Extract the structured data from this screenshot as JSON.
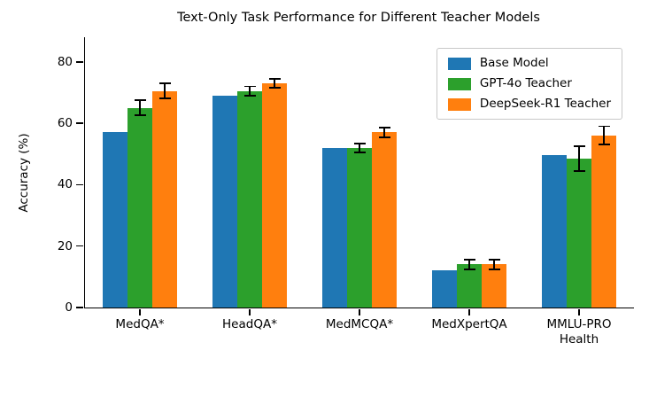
{
  "chart_data": {
    "type": "bar",
    "title": "Text-Only Task Performance for Different Teacher Models",
    "xlabel": "",
    "ylabel": "Accuracy (%)",
    "ylim": [
      0,
      88
    ],
    "yticks": [
      0,
      20,
      40,
      60,
      80
    ],
    "grid": false,
    "legend_position": "upper right",
    "categories": [
      "MedQA*",
      "HeadQA*",
      "MedMCQA*",
      "MedXpertQA",
      "MMLU-PRO\nHealth"
    ],
    "series": [
      {
        "name": "Base Model",
        "color": "#1f77b4",
        "values": [
          57,
          69,
          52,
          12,
          49.5
        ],
        "errors": [
          null,
          null,
          null,
          null,
          null
        ]
      },
      {
        "name": "GPT-4o Teacher",
        "color": "#2ca02c",
        "values": [
          65,
          70.5,
          52,
          14,
          48.5
        ],
        "errors": [
          2.5,
          1.5,
          1.5,
          1.5,
          4
        ]
      },
      {
        "name": "DeepSeek-R1 Teacher",
        "color": "#ff7f0e",
        "values": [
          70.5,
          73,
          57,
          14,
          56
        ],
        "errors": [
          2.5,
          1.5,
          1.5,
          1.5,
          3
        ]
      }
    ]
  }
}
